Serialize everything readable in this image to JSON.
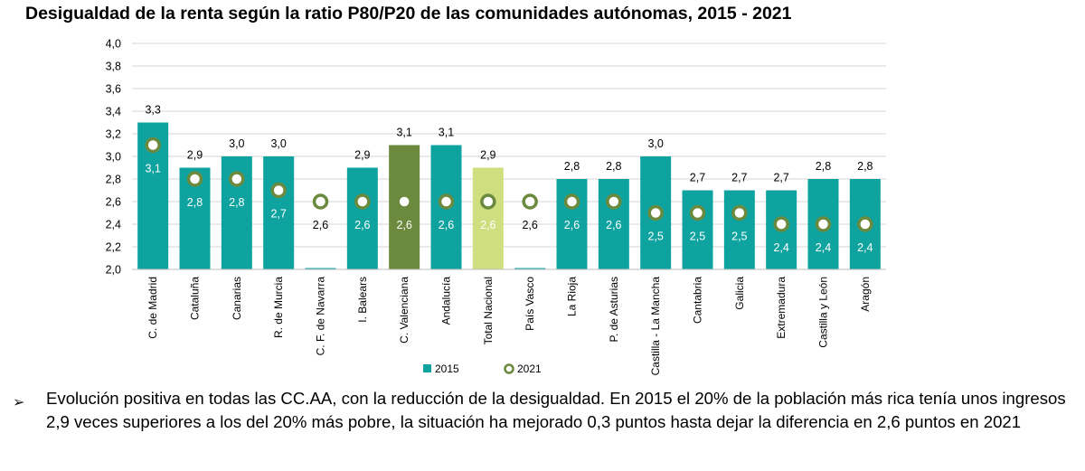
{
  "title": "Desigualdad de la renta según la ratio P80/P20 de las comunidades autónomas, 2015 - 2021",
  "chart_data": {
    "type": "bar",
    "title": "Desigualdad de la renta según la ratio P80/P20 de las comunidades autónomas, 2015 - 2021",
    "categories": [
      "C. de Madrid",
      "Cataluña",
      "Canarias",
      "R. de Murcia",
      "C. F. de Navarra",
      "I. Balears",
      "C. Valenciana",
      "Andalucía",
      "Total Nacional",
      "País Vasco",
      "La Rioja",
      "P. de Asturias",
      "Castilla - La Mancha",
      "Cantabria",
      "Galicia",
      "Extremadura",
      "Castilla y León",
      "Aragón"
    ],
    "labels_2015": [
      "3,3",
      "2,9",
      "3,0",
      "3,0",
      "",
      "2,9",
      "3,1",
      "3,1",
      "2,9",
      "",
      "2,8",
      "2,8",
      "3,0",
      "2,7",
      "2,7",
      "2,7",
      "2,8",
      "2,8"
    ],
    "labels_2021": [
      "3,1",
      "2,8",
      "2,8",
      "2,7",
      "2,6",
      "2,6",
      "2,6",
      "2,6",
      "2,6",
      "2,6",
      "2,6",
      "2,6",
      "2,5",
      "2,5",
      "2,5",
      "2,4",
      "2,4",
      "2,4"
    ],
    "series": [
      {
        "name": "2015",
        "type": "bar",
        "values": [
          3.3,
          2.9,
          3.0,
          3.0,
          2.0,
          2.9,
          3.1,
          3.1,
          2.9,
          2.0,
          2.8,
          2.8,
          3.0,
          2.7,
          2.7,
          2.7,
          2.8,
          2.8
        ]
      },
      {
        "name": "2021",
        "type": "scatter",
        "values": [
          3.1,
          2.8,
          2.8,
          2.7,
          2.6,
          2.6,
          2.6,
          2.6,
          2.6,
          2.6,
          2.6,
          2.6,
          2.5,
          2.5,
          2.5,
          2.4,
          2.4,
          2.4
        ]
      }
    ],
    "yticks": [
      "2,0",
      "2,2",
      "2,4",
      "2,6",
      "2,8",
      "3,0",
      "3,2",
      "3,4",
      "3,6",
      "3,8",
      "4,0"
    ],
    "ylim": [
      2.0,
      4.0
    ],
    "grid": true,
    "legend": "bottom-left",
    "colors": {
      "bar": "#0fa3a0",
      "highlight_valenciana": "#6b8a3e",
      "highlight_nacional": "#cfdf7f",
      "marker_ring": "#6b8a3e",
      "marker_fill": "#ffffff",
      "grid": "#d4d4d4"
    }
  },
  "note": {
    "bullet": "➢",
    "text": "Evolución positiva en todas las CC.AA, con la reducción de la desigualdad. En 2015 el 20% de la población más rica tenía unos ingresos 2,9 veces superiores a los del 20% más pobre, la situación ha mejorado 0,3 puntos hasta dejar la diferencia en 2,6 puntos en 2021"
  }
}
